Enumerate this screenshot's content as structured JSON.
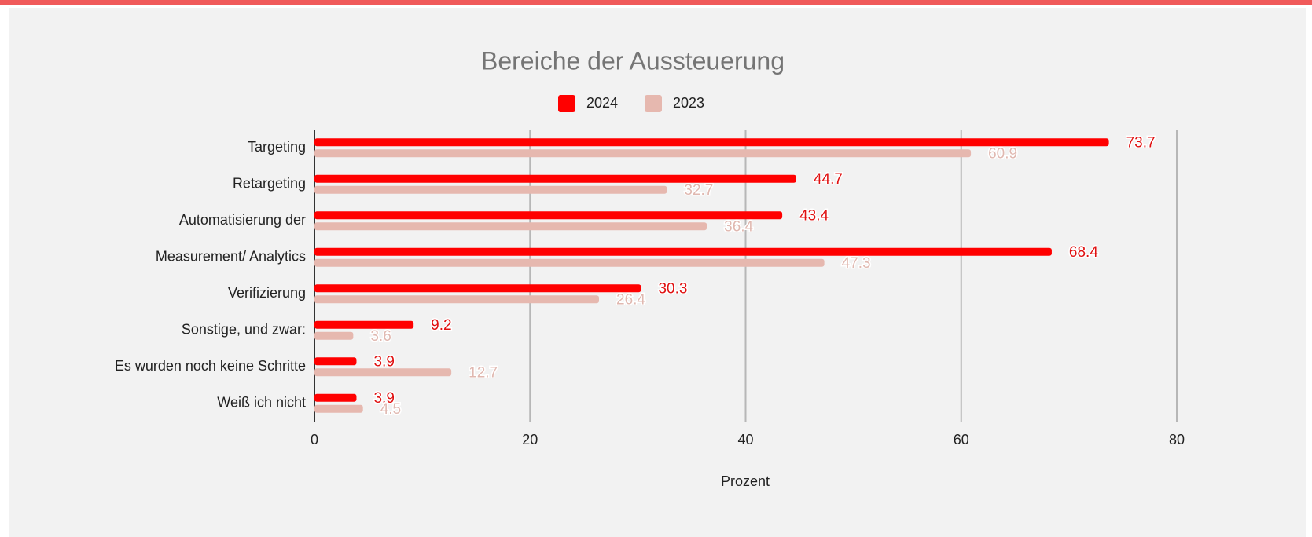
{
  "chart_data": {
    "type": "bar",
    "orientation": "horizontal",
    "title": "Bereiche der Aussteuerung",
    "categories": [
      "Targeting",
      "Retargeting",
      "Automatisierung der",
      "Measurement/ Analytics",
      "Verifizierung",
      "Sonstige, und zwar:",
      "Es wurden noch keine Schritte",
      "Weiß ich nicht"
    ],
    "series": [
      {
        "name": "2024",
        "color": "#ff0000",
        "values": [
          73.7,
          44.7,
          43.4,
          68.4,
          30.3,
          9.2,
          3.9,
          3.9
        ]
      },
      {
        "name": "2023",
        "color": "#e6b8af",
        "values": [
          60.9,
          32.7,
          36.4,
          47.3,
          26.4,
          3.6,
          12.7,
          4.5
        ]
      }
    ],
    "xlabel": "Prozent",
    "xlim": [
      0,
      80
    ],
    "xticks": [
      0,
      20,
      40,
      60,
      80
    ],
    "grid": true,
    "legend": "top"
  }
}
